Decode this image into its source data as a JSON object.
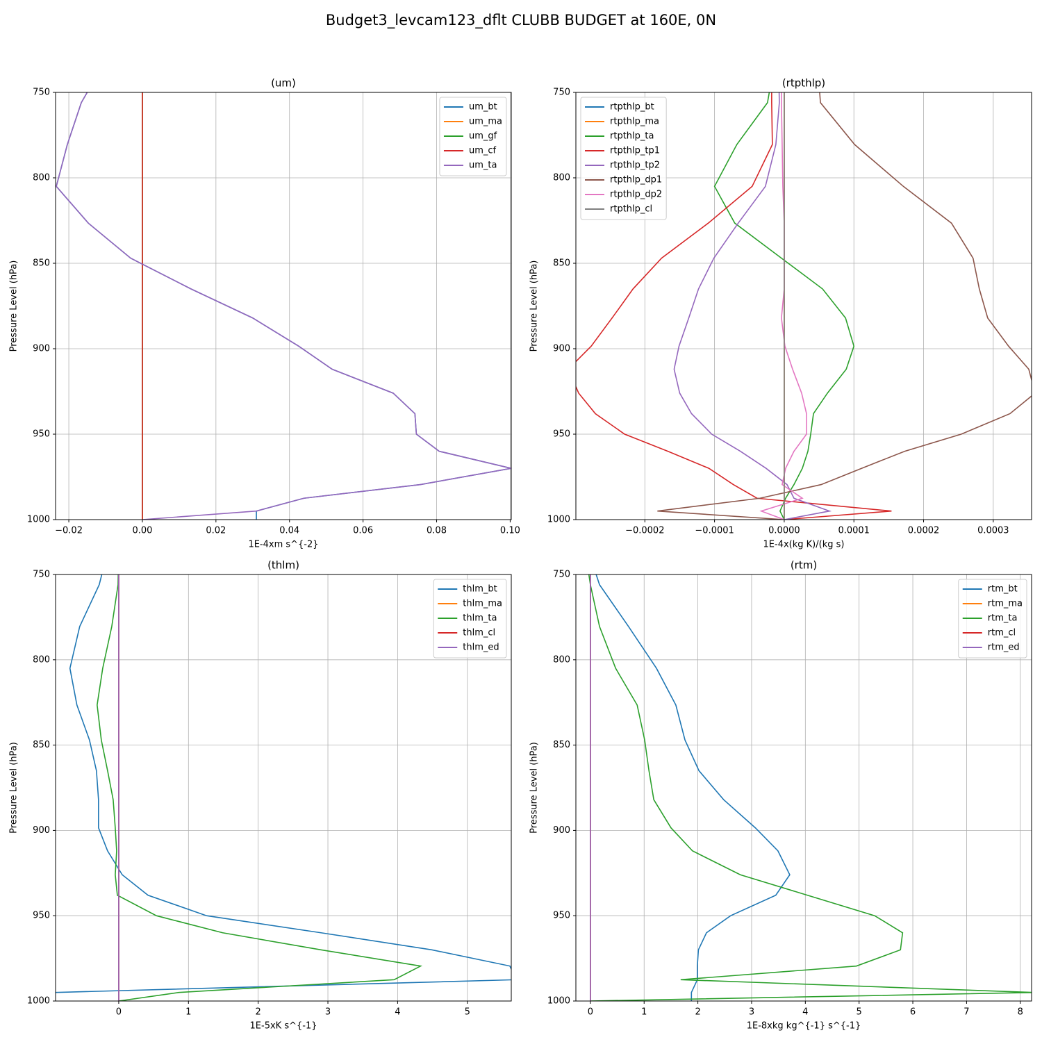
{
  "title": "Budget3_levcam123_dflt CLUBB BUDGET at 160E, 0N",
  "chart_data": [
    {
      "type": "line",
      "title": "(um)",
      "xlabel": "1E-4xm s^{-2}",
      "ylabel": "Pressure Level (hPa)",
      "y": [
        735,
        756,
        780.5,
        805,
        826.5,
        847,
        865,
        882,
        898.5,
        912,
        926,
        938,
        950,
        960,
        970,
        979.5,
        987.5,
        995,
        1000
      ],
      "xlim": [
        -0.0236,
        0.1003
      ],
      "xticks": [
        {
          "value": -0.02,
          "label": "−0.02"
        },
        {
          "value": 0,
          "label": "0.00"
        },
        0.02,
        0.04,
        0.06,
        0.08,
        {
          "value": 0.1,
          "label": "0.10"
        }
      ],
      "ylim": [
        1000,
        750
      ],
      "yticks": [
        750,
        800,
        850,
        900,
        950,
        1000
      ],
      "grid": true,
      "legend": "upper right",
      "series": [
        {
          "name": "um_bt",
          "color": "#1f77b4",
          "values": [
            -0.011,
            -0.0166,
            -0.0204,
            -0.0234,
            -0.0147,
            -0.0032,
            0.0132,
            0.03,
            0.0425,
            0.0516,
            0.0682,
            0.0741,
            0.0745,
            0.0807,
            0.1003,
            0.0756,
            0.0439,
            0.031,
            0.031
          ]
        },
        {
          "name": "um_ma",
          "color": "#ff7f0e",
          "values": [
            0,
            0,
            0,
            0,
            0,
            0,
            0,
            0,
            0,
            0,
            0,
            0,
            0,
            0,
            0,
            0,
            0,
            0,
            0
          ]
        },
        {
          "name": "um_gf",
          "color": "#2ca02c",
          "values": [
            0,
            0,
            0,
            0,
            0,
            0,
            0,
            0,
            0,
            0,
            0,
            0,
            0,
            0,
            0,
            0,
            0,
            0,
            0
          ]
        },
        {
          "name": "um_cf",
          "color": "#d62728",
          "values": [
            0,
            0,
            0,
            0,
            0,
            0,
            0,
            0,
            0,
            0,
            0,
            0,
            0,
            0,
            0,
            0,
            0,
            0,
            0
          ]
        },
        {
          "name": "um_ta",
          "color": "#9467bd",
          "values": [
            -0.011,
            -0.0166,
            -0.0204,
            -0.0234,
            -0.0147,
            -0.0032,
            0.0132,
            0.03,
            0.0425,
            0.0516,
            0.0682,
            0.0741,
            0.0745,
            0.0807,
            0.1003,
            0.0756,
            0.0439,
            0.031,
            0
          ]
        }
      ]
    },
    {
      "type": "line",
      "title": "(rtpthlp)",
      "xlabel": "1E-4x(kg K)/(kg s)",
      "ylabel": "Pressure Level (hPa)",
      "y": [
        735,
        756,
        780.5,
        805,
        826.5,
        847,
        865,
        882,
        898.5,
        912,
        926,
        938,
        950,
        960,
        970,
        979.5,
        987.5,
        995,
        1000
      ],
      "xlim": [
        -0.000299,
        0.000355
      ],
      "xticks": [
        {
          "value": -0.0002,
          "label": "−0.0002"
        },
        {
          "value": -0.0001,
          "label": "−0.0001"
        },
        {
          "value": 0,
          "label": "0.0000"
        },
        0.0001,
        0.0002,
        0.0003
      ],
      "ylim": [
        1000,
        750
      ],
      "yticks": [
        750,
        800,
        850,
        900,
        950,
        1000
      ],
      "grid": true,
      "legend": "upper left",
      "series": [
        {
          "name": "rtpthlp_bt",
          "color": "#1f77b4",
          "values": [
            0,
            0,
            0,
            0,
            0,
            0,
            0,
            0,
            0,
            0,
            0,
            0,
            0,
            0,
            0,
            0,
            0,
            0,
            0
          ]
        },
        {
          "name": "rtpthlp_ma",
          "color": "#ff7f0e",
          "values": [
            0,
            0,
            0,
            0,
            0,
            0,
            0,
            0,
            0,
            0,
            0,
            0,
            0,
            0,
            0,
            0,
            0,
            0,
            0
          ]
        },
        {
          "name": "rtpthlp_ta",
          "color": "#2ca02c",
          "values": [
            -1.5e-05,
            -2.4e-05,
            -6.8e-05,
            -0.0001,
            -7.1e-05,
            -4e-06,
            5.5e-05,
            8.8e-05,
            0.0001,
            8.9e-05,
            6.2e-05,
            4.2e-05,
            3.8e-05,
            3.4e-05,
            2.6e-05,
            1.4e-05,
            2e-06,
            -6e-06,
            0
          ]
        },
        {
          "name": "rtpthlp_tp1",
          "color": "#d62728",
          "values": [
            -1.8e-05,
            -1.8e-05,
            -1.7e-05,
            -4.6e-05,
            -0.000109,
            -0.000176,
            -0.000217,
            -0.000247,
            -0.000277,
            -0.00031,
            -0.000295,
            -0.000271,
            -0.000229,
            -0.000167,
            -0.000108,
            -7.3e-05,
            -3.9e-05,
            0.000154,
            0
          ]
        },
        {
          "name": "rtpthlp_tp2",
          "color": "#9467bd",
          "values": [
            -8e-06,
            -7e-06,
            -1.2e-05,
            -2.7e-05,
            -6.6e-05,
            -0.000101,
            -0.000123,
            -0.000137,
            -0.000151,
            -0.000158,
            -0.00015,
            -0.000133,
            -0.000104,
            -6.3e-05,
            -2.6e-05,
            4e-06,
            1.4e-05,
            6.5e-05,
            0
          ]
        },
        {
          "name": "rtpthlp_dp1",
          "color": "#8c564b",
          "values": [
            4.8e-05,
            5.2e-05,
            0.000101,
            0.000171,
            0.00024,
            0.000271,
            0.00028,
            0.000292,
            0.000322,
            0.000351,
            0.00036,
            0.000324,
            0.000254,
            0.000173,
            0.000111,
            5.3e-05,
            -3.5e-05,
            -0.000182,
            0
          ]
        },
        {
          "name": "rtpthlp_dp2",
          "color": "#e377c2",
          "values": [
            -4e-06,
            -4e-06,
            -3e-06,
            -2e-06,
            0,
            0,
            0,
            -4e-06,
            1e-06,
            1.2e-05,
            2.5e-05,
            3.2e-05,
            3.2e-05,
            1.4e-05,
            2e-06,
            -3e-06,
            2.6e-05,
            -3.3e-05,
            0
          ]
        },
        {
          "name": "rtpthlp_cl",
          "color": "#7f7f7f",
          "values": [
            0,
            0,
            0,
            0,
            0,
            0,
            0,
            0,
            0,
            0,
            0,
            0,
            0,
            0,
            0,
            0,
            0,
            0,
            0
          ]
        }
      ]
    },
    {
      "type": "line",
      "title": "(thlm)",
      "xlabel": "1E-5xK s^{-1}",
      "ylabel": "Pressure Level (hPa)",
      "y": [
        735,
        756,
        780.5,
        805,
        826.5,
        847,
        865,
        882,
        898.5,
        912,
        926,
        938,
        950,
        960,
        970,
        979.5,
        987.5,
        995,
        1000
      ],
      "xlim": [
        -0.906,
        5.63
      ],
      "xticks": [
        0,
        1,
        2,
        3,
        4,
        5
      ],
      "ylim": [
        1000,
        750
      ],
      "yticks": [
        750,
        800,
        850,
        900,
        950,
        1000
      ],
      "grid": true,
      "legend": "upper right",
      "series": [
        {
          "name": "thlm_bt",
          "color": "#1f77b4",
          "values": [
            -0.15,
            -0.28,
            -0.56,
            -0.7,
            -0.6,
            -0.42,
            -0.32,
            -0.29,
            -0.29,
            -0.16,
            0.05,
            0.42,
            1.26,
            2.9,
            4.49,
            5.61,
            5.7,
            -0.92,
            -1.0
          ]
        },
        {
          "name": "thlm_ma",
          "color": "#ff7f0e",
          "values": [
            0,
            0,
            0,
            0,
            0,
            0,
            0,
            0,
            0,
            0,
            0,
            0,
            0,
            0,
            0,
            0,
            0,
            0,
            0
          ]
        },
        {
          "name": "thlm_ta",
          "color": "#2ca02c",
          "values": [
            0,
            -0.01,
            -0.1,
            -0.23,
            -0.31,
            -0.25,
            -0.16,
            -0.08,
            -0.05,
            -0.03,
            -0.05,
            -0.02,
            0.54,
            1.49,
            2.9,
            4.33,
            3.95,
            0.86,
            0
          ]
        },
        {
          "name": "thlm_cl",
          "color": "#d62728",
          "values": [
            0,
            0,
            0,
            0,
            0,
            0,
            0,
            0,
            0,
            0,
            0,
            0,
            0,
            0,
            0,
            0,
            0,
            0,
            0
          ]
        },
        {
          "name": "thlm_ed",
          "color": "#9467bd",
          "values": [
            0,
            0,
            0,
            0,
            0,
            0,
            0,
            0,
            0,
            0,
            0,
            0,
            0,
            0,
            0,
            0,
            0,
            0,
            0
          ]
        }
      ]
    },
    {
      "type": "line",
      "title": "(rtm)",
      "xlabel": "1E-8xkg kg^{-1} s^{-1}",
      "ylabel": "Pressure Level (hPa)",
      "y": [
        735,
        756,
        780.5,
        805,
        826.5,
        847,
        865,
        882,
        898.5,
        912,
        926,
        938,
        950,
        960,
        970,
        979.5,
        987.5,
        995,
        1000
      ],
      "xlim": [
        -0.27,
        8.21
      ],
      "xticks": [
        0,
        1,
        2,
        3,
        4,
        5,
        6,
        7,
        8
      ],
      "ylim": [
        1000,
        750
      ],
      "yticks": [
        750,
        800,
        850,
        900,
        950,
        1000
      ],
      "grid": true,
      "legend": "upper right",
      "series": [
        {
          "name": "rtm_bt",
          "color": "#1f77b4",
          "values": [
            -0.05,
            0.17,
            0.71,
            1.23,
            1.59,
            1.76,
            2.02,
            2.48,
            3.07,
            3.49,
            3.71,
            3.45,
            2.61,
            2.16,
            2.01,
            1.99,
            1.99,
            1.88,
            1.88
          ]
        },
        {
          "name": "rtm_ma",
          "color": "#ff7f0e",
          "values": [
            0,
            0,
            0,
            0,
            0,
            0,
            0,
            0,
            0,
            0,
            0,
            0,
            0,
            0,
            0,
            0,
            0,
            0,
            0
          ]
        },
        {
          "name": "rtm_ta",
          "color": "#2ca02c",
          "values": [
            -0.1,
            0,
            0.17,
            0.47,
            0.87,
            1.01,
            1.09,
            1.18,
            1.5,
            1.9,
            2.79,
            4.04,
            5.29,
            5.81,
            5.77,
            4.95,
            1.68,
            8.25,
            0
          ]
        },
        {
          "name": "rtm_cl",
          "color": "#d62728",
          "values": [
            0,
            0,
            0,
            0,
            0,
            0,
            0,
            0,
            0,
            0,
            0,
            0,
            0,
            0,
            0,
            0,
            0,
            0,
            0
          ]
        },
        {
          "name": "rtm_ed",
          "color": "#9467bd",
          "values": [
            0,
            0,
            0,
            0,
            0,
            0,
            0,
            0,
            0,
            0,
            0,
            0,
            0,
            0,
            0,
            0,
            0,
            0,
            0
          ]
        }
      ]
    }
  ]
}
